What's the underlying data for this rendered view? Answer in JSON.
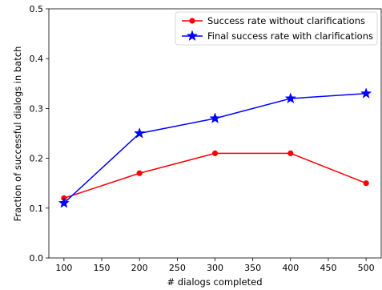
{
  "chart_data": {
    "type": "line",
    "title": "",
    "xlabel": "# dialogs completed",
    "ylabel": "Fraction of successful dialogs in batch",
    "xlim": [
      80,
      520
    ],
    "ylim": [
      0,
      0.5
    ],
    "x_ticks": [
      100,
      150,
      200,
      250,
      300,
      350,
      400,
      450,
      500
    ],
    "x_tick_labels": [
      "100",
      "150",
      "200",
      "250",
      "300",
      "350",
      "400",
      "450",
      "500"
    ],
    "y_ticks": [
      0.0,
      0.1,
      0.2,
      0.3,
      0.4,
      0.5
    ],
    "y_tick_labels": [
      "0.0",
      "0.1",
      "0.2",
      "0.3",
      "0.4",
      "0.5"
    ],
    "grid": false,
    "legend_position": "top-right",
    "x": [
      100,
      200,
      300,
      400,
      500
    ],
    "series": [
      {
        "name": "Success rate without clarifications",
        "color": "#ff0000",
        "marker": "circle",
        "values": [
          0.12,
          0.17,
          0.21,
          0.21,
          0.15
        ]
      },
      {
        "name": "Final success rate with clarifications",
        "color": "#0000ff",
        "marker": "star",
        "values": [
          0.11,
          0.25,
          0.28,
          0.32,
          0.33
        ]
      }
    ]
  }
}
